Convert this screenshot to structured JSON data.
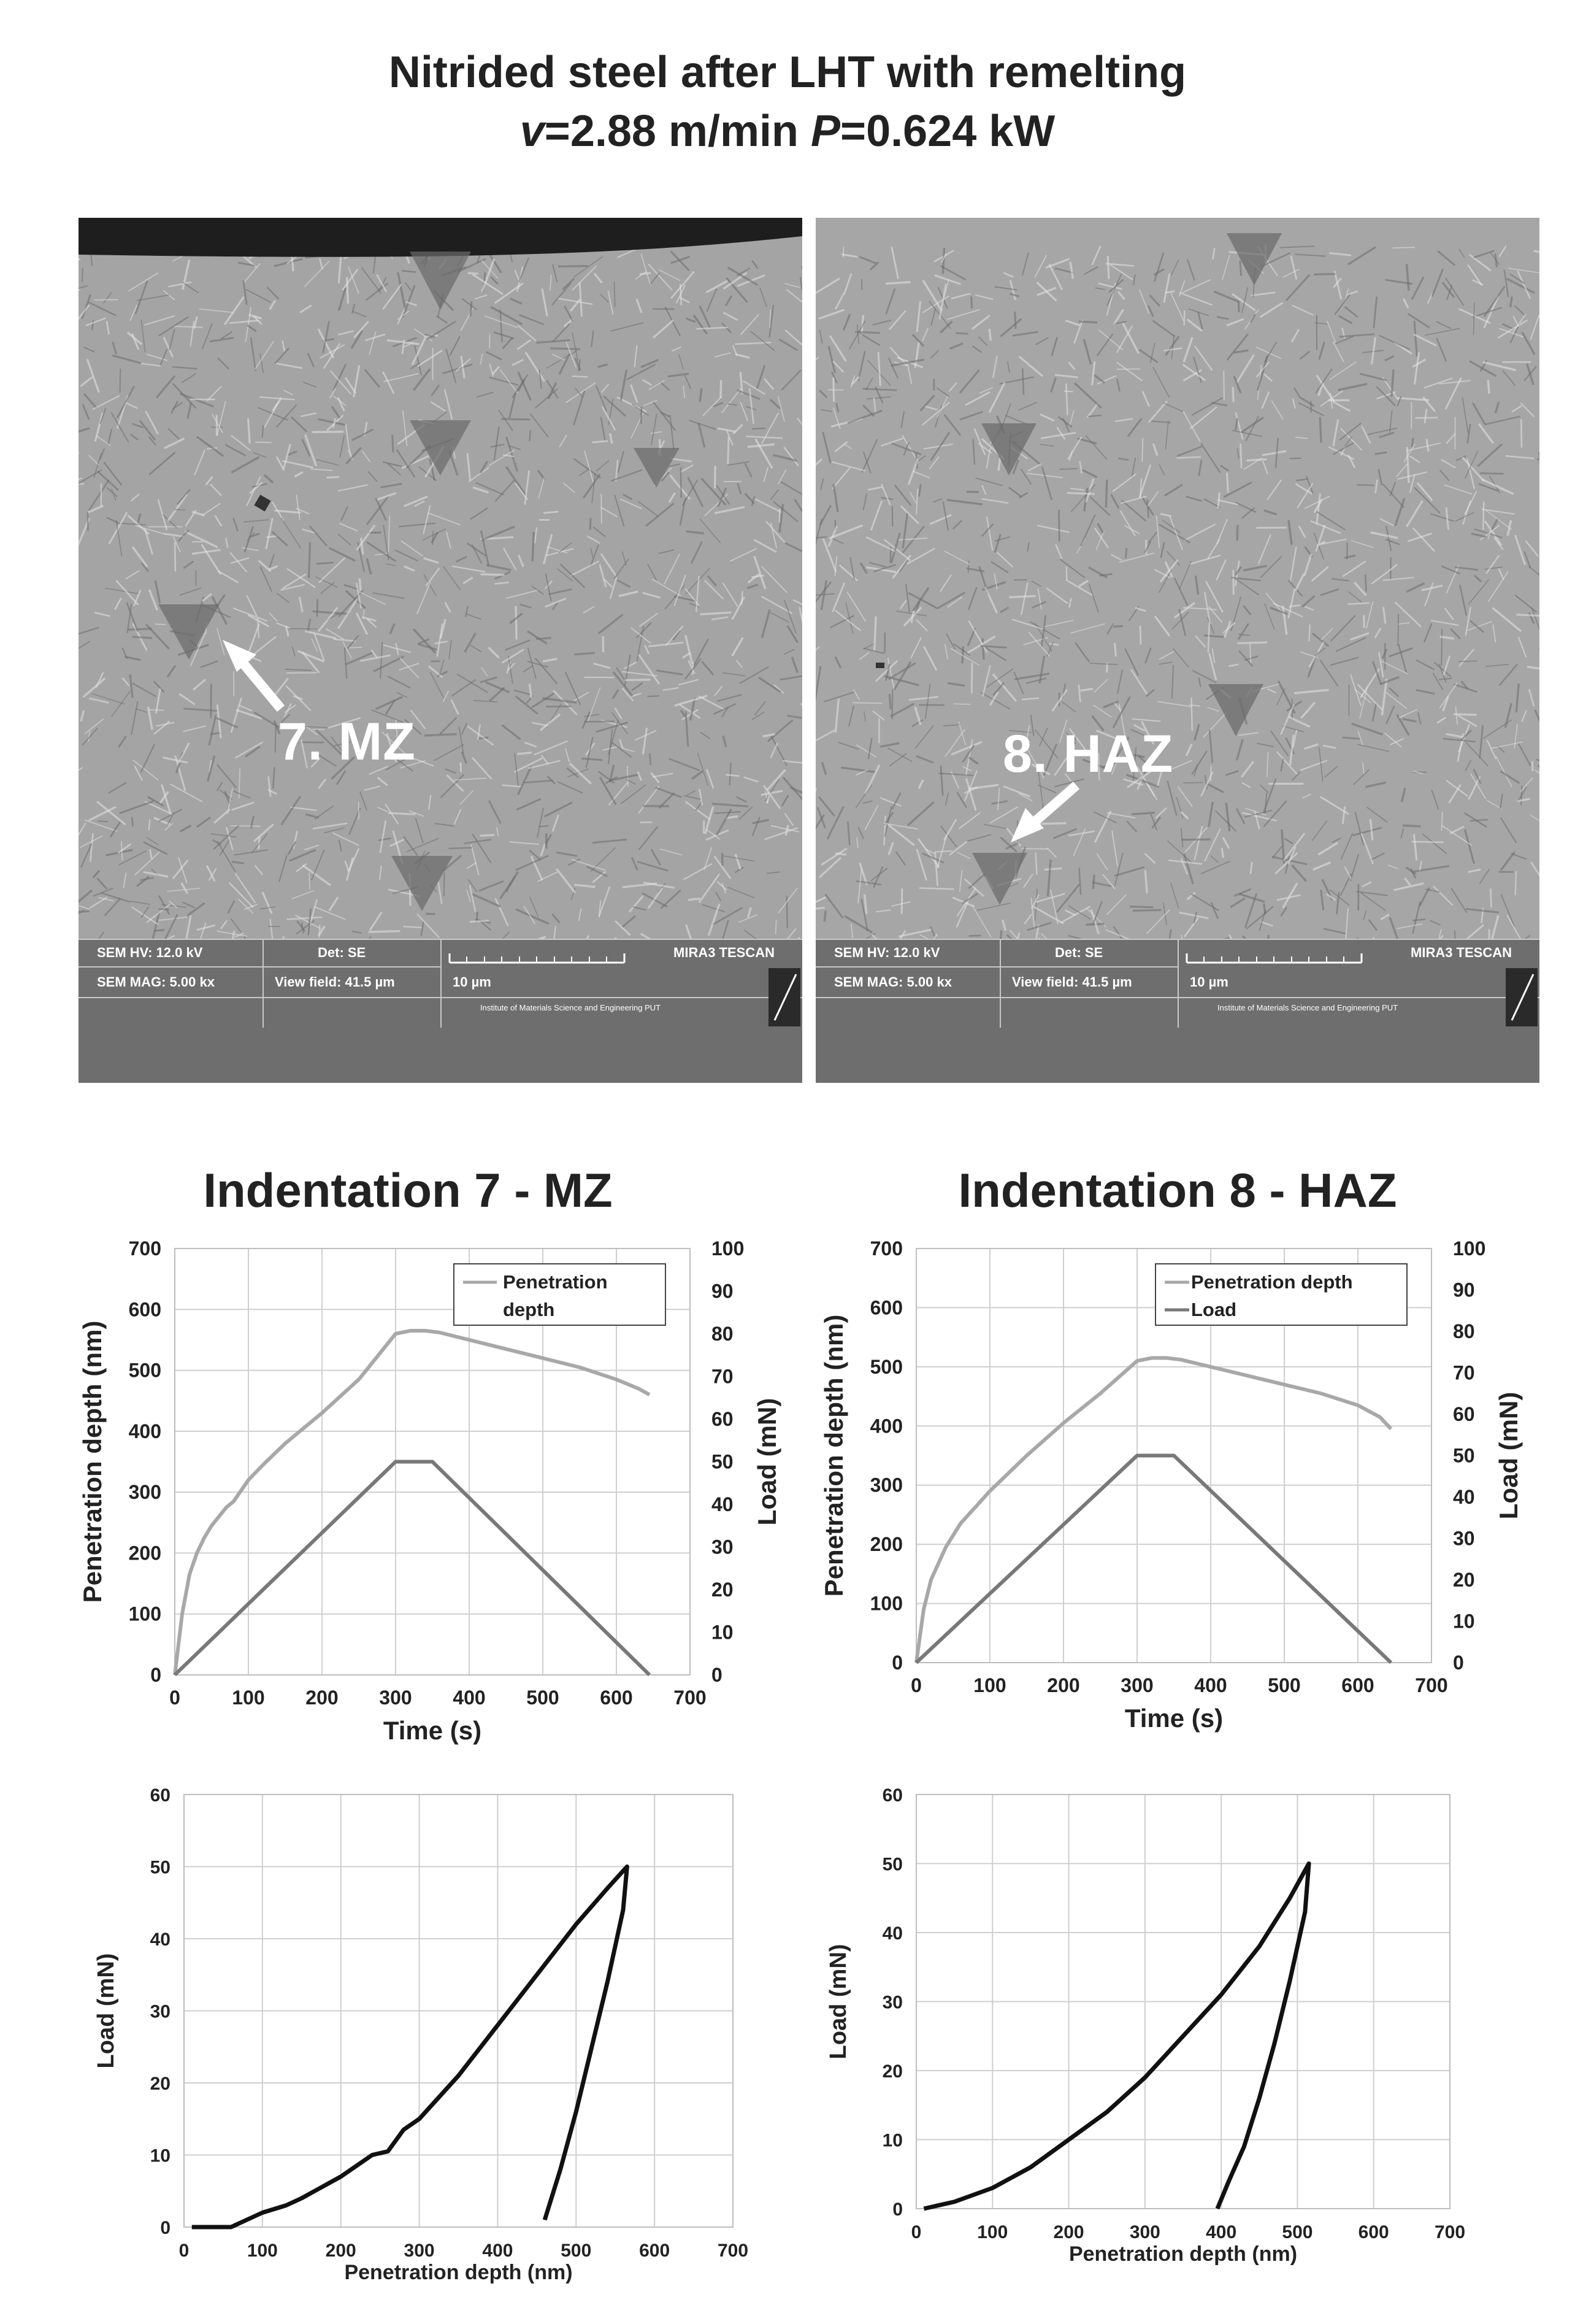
{
  "figure": {
    "title_line1": "Nitrided steel after LHT with remelting",
    "title_v_symbol": "v",
    "title_v_value": "=2.88 m/min",
    "title_p_symbol": "P",
    "title_p_value": "=0.624 kW"
  },
  "sem_images": [
    {
      "label": "7. MZ",
      "info": {
        "hv": "SEM HV: 12.0 kV",
        "det": "Det: SE",
        "brand": "MIRA3 TESCAN",
        "mag": "SEM MAG: 5.00 kx",
        "view_field": "View field: 41.5 µm",
        "scale": "10 µm",
        "institute": "Institute of Materials Science and Engineering  PUT"
      }
    },
    {
      "label": "8. HAZ",
      "info": {
        "hv": "SEM HV: 12.0 kV",
        "det": "Det: SE",
        "brand": "MIRA3 TESCAN",
        "mag": "SEM MAG: 5.00 kx",
        "view_field": "View field: 41.5 µm",
        "scale": "10 µm",
        "institute": "Institute of Materials Science and Engineering  PUT"
      }
    }
  ],
  "chart_data": [
    {
      "type": "line",
      "title": "Indentation 7 - MZ",
      "xlabel": "Time (s)",
      "ylabel": "Penetration depth (nm)",
      "y2label": "Load (mN)",
      "xlim": [
        0,
        700
      ],
      "ylim": [
        0,
        700
      ],
      "y2lim": [
        0,
        100
      ],
      "x_ticks": [
        0,
        100,
        200,
        300,
        400,
        500,
        600,
        700
      ],
      "y_ticks": [
        0,
        100,
        200,
        300,
        400,
        500,
        600,
        700
      ],
      "y2_ticks": [
        0,
        10,
        20,
        30,
        40,
        50,
        60,
        70,
        80,
        90,
        100
      ],
      "grid": true,
      "legend_position": "top-right",
      "legend": [
        "Penetration depth"
      ],
      "series": [
        {
          "name": "Penetration depth",
          "axis": "left",
          "color": "#a8a8a8",
          "x": [
            0,
            10,
            20,
            30,
            40,
            50,
            60,
            70,
            80,
            100,
            120,
            150,
            200,
            250,
            300,
            320,
            340,
            360,
            400,
            450,
            500,
            550,
            600,
            630,
            645
          ],
          "y": [
            0,
            100,
            165,
            200,
            225,
            245,
            260,
            275,
            285,
            320,
            345,
            380,
            430,
            485,
            560,
            565,
            565,
            562,
            550,
            535,
            520,
            505,
            485,
            470,
            460
          ]
        },
        {
          "name": "Load",
          "axis": "right",
          "color": "#787878",
          "x": [
            0,
            300,
            350,
            645
          ],
          "y": [
            0,
            50,
            50,
            0
          ]
        }
      ]
    },
    {
      "type": "line",
      "title": "Indentation 8 - HAZ",
      "xlabel": "Time (s)",
      "ylabel": "Penetration depth (nm)",
      "y2label": "Load (mN)",
      "xlim": [
        0,
        700
      ],
      "ylim": [
        0,
        700
      ],
      "y2lim": [
        0,
        100
      ],
      "x_ticks": [
        0,
        100,
        200,
        300,
        400,
        500,
        600,
        700
      ],
      "y_ticks": [
        0,
        100,
        200,
        300,
        400,
        500,
        600,
        700
      ],
      "y2_ticks": [
        0,
        10,
        20,
        30,
        40,
        50,
        60,
        70,
        80,
        90,
        100
      ],
      "grid": true,
      "legend_position": "top-right",
      "legend": [
        "Penetration depth",
        "Load"
      ],
      "series": [
        {
          "name": "Penetration depth",
          "axis": "left",
          "color": "#a8a8a8",
          "x": [
            0,
            10,
            20,
            40,
            60,
            100,
            150,
            200,
            250,
            300,
            320,
            340,
            360,
            400,
            450,
            500,
            550,
            600,
            630,
            645
          ],
          "y": [
            0,
            90,
            140,
            195,
            235,
            290,
            350,
            405,
            455,
            510,
            515,
            515,
            512,
            500,
            485,
            470,
            455,
            435,
            415,
            395
          ]
        },
        {
          "name": "Load",
          "axis": "right",
          "color": "#787878",
          "x": [
            0,
            300,
            350,
            645
          ],
          "y": [
            0,
            50,
            50,
            0
          ]
        }
      ]
    },
    {
      "type": "line",
      "title": "",
      "xlabel": "Penetration depth (nm)",
      "ylabel": "Load (mN)",
      "xlim": [
        0,
        700
      ],
      "ylim": [
        0,
        60
      ],
      "x_ticks": [
        0,
        100,
        200,
        300,
        400,
        500,
        600,
        700
      ],
      "y_ticks": [
        0,
        10,
        20,
        30,
        40,
        50,
        60
      ],
      "grid": true,
      "series": [
        {
          "color": "#111111",
          "x": [
            10,
            60,
            80,
            100,
            130,
            150,
            200,
            240,
            260,
            270,
            280,
            300,
            350,
            400,
            450,
            500,
            540,
            565,
            560,
            540,
            520,
            500,
            480,
            460
          ],
          "y": [
            0,
            0,
            1,
            2,
            3,
            4,
            7,
            10,
            10.5,
            12,
            13.5,
            15,
            21,
            28,
            35,
            42,
            47,
            50,
            44,
            34,
            25,
            16,
            8,
            1
          ]
        }
      ]
    },
    {
      "type": "line",
      "title": "",
      "xlabel": "Penetration depth (nm)",
      "ylabel": "Load (mN)",
      "xlim": [
        0,
        700
      ],
      "ylim": [
        0,
        60
      ],
      "x_ticks": [
        0,
        100,
        200,
        300,
        400,
        500,
        600,
        700
      ],
      "y_ticks": [
        0,
        10,
        20,
        30,
        40,
        50,
        60
      ],
      "grid": true,
      "series": [
        {
          "color": "#111111",
          "x": [
            10,
            50,
            100,
            150,
            200,
            250,
            300,
            350,
            400,
            450,
            490,
            515,
            510,
            490,
            470,
            450,
            430,
            410,
            395
          ],
          "y": [
            0,
            1,
            3,
            6,
            10,
            14,
            19,
            25,
            31,
            38,
            45,
            50,
            43,
            33,
            24,
            16,
            9,
            4,
            0
          ]
        }
      ]
    }
  ]
}
